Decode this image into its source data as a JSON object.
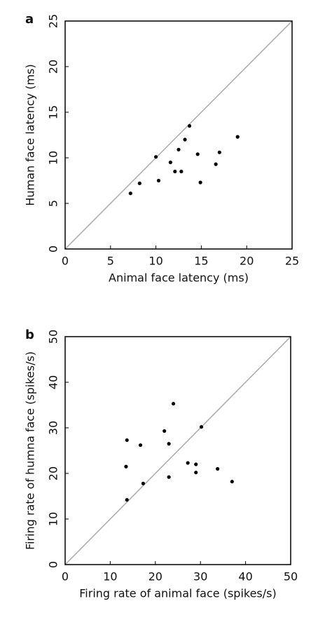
{
  "chart_data": [
    {
      "type": "scatter",
      "panel_label": "a",
      "x_label": "Animal face latency (ms)",
      "y_label": "Human face latency (ms)",
      "x": [
        7.2,
        8.2,
        10.0,
        10.3,
        11.6,
        12.1,
        12.5,
        12.8,
        13.2,
        13.7,
        14.6,
        14.9,
        16.6,
        17.0,
        19.0
      ],
      "y": [
        6.1,
        7.2,
        10.1,
        7.5,
        9.5,
        8.5,
        10.9,
        8.5,
        12.0,
        13.5,
        10.4,
        7.3,
        9.3,
        10.6,
        12.3
      ],
      "color": "#000000",
      "diagonal_color": "#aaaaaa",
      "xlim": [
        0,
        25
      ],
      "ylim": [
        0,
        25
      ],
      "xticks": [
        0,
        5,
        10,
        15,
        20,
        25
      ],
      "yticks": [
        0,
        5,
        10,
        15,
        20,
        25
      ]
    },
    {
      "type": "scatter",
      "panel_label": "b",
      "x_label": "Firing rate of animal face (spikes/s)",
      "y_label": "Firing rate of humna face (spikes/s)",
      "x": [
        13.7,
        13.5,
        13.7,
        16.7,
        17.3,
        22.0,
        23.0,
        23.0,
        24.0,
        27.2,
        29.0,
        29.0,
        30.2,
        33.8,
        37.0
      ],
      "y": [
        27.3,
        21.5,
        14.2,
        26.2,
        17.8,
        29.3,
        26.5,
        19.2,
        35.3,
        22.3,
        22.0,
        20.2,
        30.2,
        21.0,
        18.2
      ],
      "color": "#000000",
      "diagonal_color": "#aaaaaa",
      "xlim": [
        0,
        50
      ],
      "ylim": [
        0,
        50
      ],
      "xticks": [
        0,
        10,
        20,
        30,
        40,
        50
      ],
      "yticks": [
        0,
        10,
        20,
        30,
        40,
        50
      ]
    }
  ]
}
